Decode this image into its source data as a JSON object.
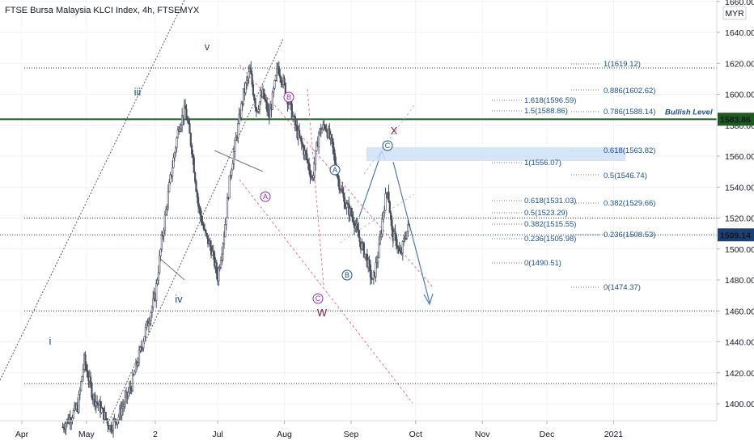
{
  "header": {
    "title": "FTSE Bursa Malaysia KLCI Index, 4h, FTSEMYX",
    "currency": "MYR"
  },
  "chart_data": {
    "type": "candlestick",
    "title": "FTSE Bursa Malaysia KLCI Index, 4h, FTSEMYX",
    "ylim": [
      1386,
      1665
    ],
    "y_ticks": [
      1400,
      1420,
      1440,
      1460,
      1480,
      1500,
      1520,
      1540,
      1560,
      1580,
      1600,
      1620,
      1640,
      1660
    ],
    "y_tick_labels": [
      "1400.00",
      "1420.00",
      "1440.00",
      "1460.00",
      "1480.00",
      "1500.00",
      "1520.00",
      "1540.00",
      "1560.00",
      "1580.00",
      "1600.00",
      "1620.00",
      "1640.00",
      "1660.00"
    ],
    "x_ticks": [
      {
        "label": "Apr",
        "date": "2020-04-01"
      },
      {
        "label": "May",
        "date": "2020-05-01"
      },
      {
        "label": "2",
        "date": "2020-06-02"
      },
      {
        "label": "Jul",
        "date": "2020-07-01"
      },
      {
        "label": "Aug",
        "date": "2020-08-01"
      },
      {
        "label": "Sep",
        "date": "2020-09-01"
      },
      {
        "label": "Oct",
        "date": "2020-10-01"
      },
      {
        "label": "Nov",
        "date": "2020-11-01"
      },
      {
        "label": "Dec",
        "date": "2020-12-01"
      },
      {
        "label": "2021",
        "date": "2021-01-01"
      }
    ],
    "price_path": [
      {
        "date": "2020-04-20",
        "value": 1385
      },
      {
        "date": "2020-04-27",
        "value": 1398
      },
      {
        "date": "2020-04-30",
        "value": 1428
      },
      {
        "date": "2020-05-04",
        "value": 1405
      },
      {
        "date": "2020-05-08",
        "value": 1396
      },
      {
        "date": "2020-05-12",
        "value": 1385
      },
      {
        "date": "2020-05-16",
        "value": 1392
      },
      {
        "date": "2020-05-22",
        "value": 1412
      },
      {
        "date": "2020-05-28",
        "value": 1445
      },
      {
        "date": "2020-06-02",
        "value": 1470
      },
      {
        "date": "2020-06-05",
        "value": 1505
      },
      {
        "date": "2020-06-09",
        "value": 1545
      },
      {
        "date": "2020-06-13",
        "value": 1580
      },
      {
        "date": "2020-06-16",
        "value": 1590
      },
      {
        "date": "2020-06-19",
        "value": 1565
      },
      {
        "date": "2020-06-22",
        "value": 1528
      },
      {
        "date": "2020-06-25",
        "value": 1510
      },
      {
        "date": "2020-06-28",
        "value": 1500
      },
      {
        "date": "2020-07-01",
        "value": 1482
      },
      {
        "date": "2020-07-04",
        "value": 1510
      },
      {
        "date": "2020-07-07",
        "value": 1550
      },
      {
        "date": "2020-07-10",
        "value": 1575
      },
      {
        "date": "2020-07-13",
        "value": 1600
      },
      {
        "date": "2020-07-16",
        "value": 1615
      },
      {
        "date": "2020-07-19",
        "value": 1590
      },
      {
        "date": "2020-07-22",
        "value": 1600
      },
      {
        "date": "2020-07-25",
        "value": 1585
      },
      {
        "date": "2020-07-29",
        "value": 1618
      },
      {
        "date": "2020-08-01",
        "value": 1605
      },
      {
        "date": "2020-08-04",
        "value": 1590
      },
      {
        "date": "2020-08-07",
        "value": 1575
      },
      {
        "date": "2020-08-11",
        "value": 1560
      },
      {
        "date": "2020-08-14",
        "value": 1545
      },
      {
        "date": "2020-08-17",
        "value": 1575
      },
      {
        "date": "2020-08-20",
        "value": 1580
      },
      {
        "date": "2020-08-23",
        "value": 1568
      },
      {
        "date": "2020-08-26",
        "value": 1545
      },
      {
        "date": "2020-08-29",
        "value": 1530
      },
      {
        "date": "2020-09-02",
        "value": 1520
      },
      {
        "date": "2020-09-05",
        "value": 1505
      },
      {
        "date": "2020-09-08",
        "value": 1495
      },
      {
        "date": "2020-09-11",
        "value": 1478
      },
      {
        "date": "2020-09-14",
        "value": 1500
      },
      {
        "date": "2020-09-16",
        "value": 1525
      },
      {
        "date": "2020-09-18",
        "value": 1540
      },
      {
        "date": "2020-09-20",
        "value": 1510
      },
      {
        "date": "2020-09-22",
        "value": 1505
      },
      {
        "date": "2020-09-24",
        "value": 1495
      },
      {
        "date": "2020-09-26",
        "value": 1508
      },
      {
        "date": "2020-09-28",
        "value": 1515
      }
    ],
    "last_price": "1509.14",
    "bullish_level": {
      "value": 1583.86,
      "label": "Bullish Level",
      "price_label": "1583.86"
    },
    "horizontal_levels": [
      1617,
      1583.86,
      1520,
      1509.14,
      1460,
      1413
    ],
    "fib_labels": [
      {
        "text": "1(1619.12)",
        "value": 1619.12
      },
      {
        "text": "0.886(1602.62)",
        "value": 1602.62
      },
      {
        "text": "1.618(1596.59)",
        "value": 1596.59
      },
      {
        "text": "1.5(1588.86)",
        "value": 1588.86
      },
      {
        "text": "0.786(1588.14)",
        "value": 1588.14
      },
      {
        "text": "0.618(1563.82)",
        "value": 1563.82
      },
      {
        "text": "1(1556.07)",
        "value": 1556.07
      },
      {
        "text": "0.5(1546.74)",
        "value": 1546.74
      },
      {
        "text": "0.618(1531.03)",
        "value": 1531.03
      },
      {
        "text": "0.382(1529.66)",
        "value": 1529.66
      },
      {
        "text": "0.5(1523.29)",
        "value": 1523.29
      },
      {
        "text": "0.382(1515.55)",
        "value": 1515.55
      },
      {
        "text": "0.236(1505.98)",
        "value": 1505.98
      },
      {
        "text": "0.236(1508.53)",
        "value": 1508.53
      },
      {
        "text": "0(1490.51)",
        "value": 1490.51
      },
      {
        "text": "0(1474.37)",
        "value": 1474.37
      }
    ],
    "wave_labels": [
      {
        "text": "i",
        "date": "2020-04-25",
        "value": 1439,
        "color": "#1d4e89"
      },
      {
        "text": "iii",
        "date": "2020-06-15",
        "value": 1600,
        "color": "#1d4e89"
      },
      {
        "text": "iv",
        "date": "2020-07-01",
        "value": 1469,
        "color": "#1d4e89"
      },
      {
        "text": "v",
        "date": "2020-07-14",
        "value": 1632,
        "color": "#1d4e89"
      },
      {
        "text": "W",
        "date": "2020-09-12",
        "value": 1460,
        "color": "#8b1a4a"
      },
      {
        "text": "X",
        "date": "2020-10-15",
        "value": 1568,
        "color": "#8b1a4a"
      }
    ],
    "circle_labels": [
      {
        "text": "B",
        "date": "2020-08-25",
        "value": 1597,
        "color": "#9c27b0"
      },
      {
        "text": "A",
        "date": "2020-08-15",
        "value": 1540,
        "color": "#9c27b0"
      },
      {
        "text": "C",
        "date": "2020-09-12",
        "value": 1470,
        "color": "#9c27b0"
      },
      {
        "text": "A",
        "date": "2020-09-18",
        "value": 1550,
        "color": "#1d4e89"
      },
      {
        "text": "B",
        "date": "2020-09-25",
        "value": 1485,
        "color": "#1d4e89"
      },
      {
        "text": "C",
        "date": "2020-10-10",
        "value": 1564,
        "color": "#1d4e89"
      }
    ],
    "colors": {
      "candle": "#4a4f5c",
      "bullish_level": "#1e5a1e",
      "bullish_label": "#2e7d7d",
      "channel_dots": "#555555",
      "red_channel": "#e8718a",
      "projection": "#4a7ab8",
      "target_zone": "#cfe0f7",
      "fib_text": "#1d4e89",
      "price_tag": "#1e3f73",
      "bullish_tag": "#1e5a1e"
    }
  }
}
